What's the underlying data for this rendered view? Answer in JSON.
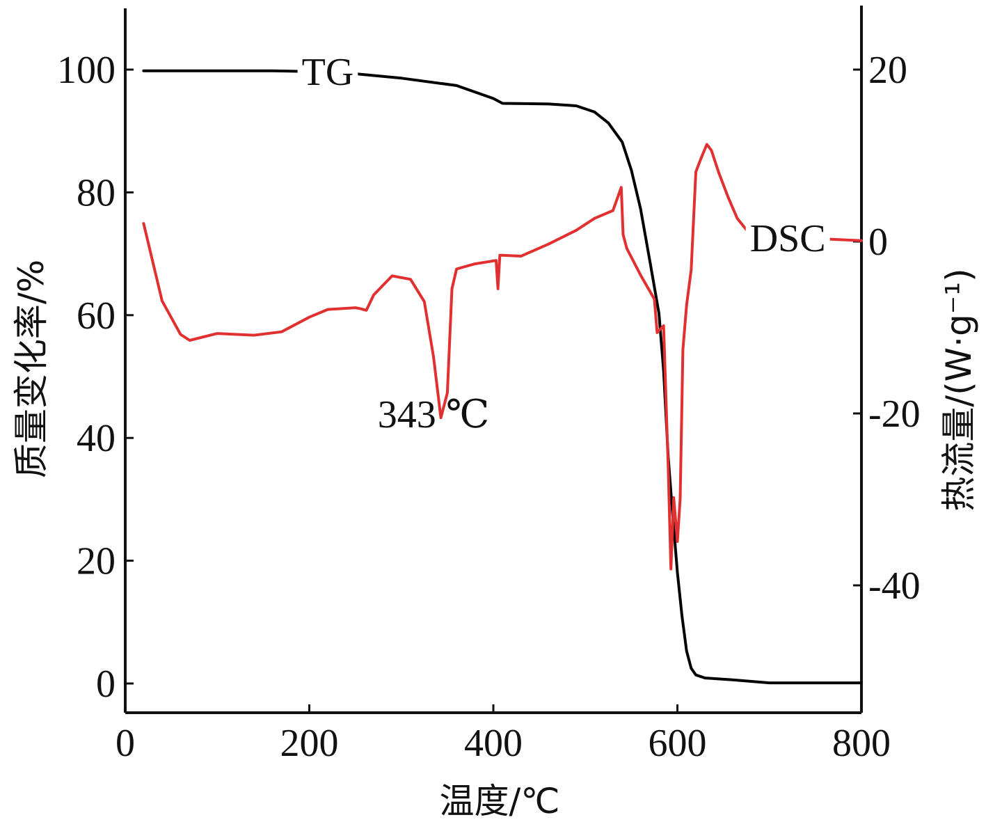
{
  "chart_data": {
    "type": "line",
    "xlabel": "温度/℃",
    "ylabel_left": "质量变化率/%",
    "ylabel_right": "热流量/(W·g⁻¹)",
    "xlim": [
      0,
      800
    ],
    "ylim_left": [
      -5,
      110
    ],
    "ylim_right": [
      -55,
      27
    ],
    "xticks": [
      0,
      200,
      400,
      600,
      800
    ],
    "yticks_left": [
      0,
      20,
      40,
      60,
      80,
      100
    ],
    "yticks_right": [
      20,
      0,
      -20,
      -40
    ],
    "colors": {
      "tg": "#000000",
      "dsc": "#e03030",
      "axis": "#111111"
    },
    "grid": false,
    "series": [
      {
        "name": "TG",
        "axis": "left",
        "color": "#000000",
        "x": [
          20,
          90,
          160,
          230,
          300,
          360,
          400,
          410,
          460,
          490,
          510,
          525,
          540,
          550,
          560,
          570,
          580,
          585,
          590,
          595,
          600,
          605,
          610,
          615,
          620,
          630,
          660,
          700,
          760,
          800
        ],
        "y": [
          99.8,
          99.8,
          99.8,
          99.6,
          98.6,
          97.4,
          95.3,
          94.5,
          94.4,
          94.1,
          93.1,
          91.3,
          88.2,
          83.6,
          77.3,
          68.9,
          60.3,
          50.9,
          36.9,
          27.2,
          18.1,
          11.0,
          5.3,
          2.5,
          1.4,
          0.9,
          0.6,
          0.1,
          0.1,
          0.1
        ]
      },
      {
        "name": "DSC",
        "axis": "right",
        "color": "#e03030",
        "x": [
          20,
          40,
          60,
          70,
          100,
          140,
          170,
          200,
          220,
          250,
          255,
          262,
          270,
          290,
          310,
          325,
          335,
          343,
          350,
          355,
          360,
          380,
          403,
          405,
          407,
          410,
          430,
          460,
          490,
          510,
          530,
          539,
          541,
          545,
          560,
          575,
          578,
          585,
          590,
          593,
          596,
          600,
          603,
          606,
          610,
          615,
          620,
          625,
          632,
          637,
          645,
          655,
          665,
          680,
          800
        ],
        "y": [
          2.1,
          -6.9,
          -10.8,
          -11.5,
          -10.7,
          -10.9,
          -10.5,
          -8.8,
          -7.9,
          -7.7,
          -7.8,
          -8.0,
          -6.2,
          -4.0,
          -4.4,
          -7.0,
          -13.4,
          -20.5,
          -17.6,
          -5.5,
          -3.2,
          -2.6,
          -2.2,
          -5.5,
          -1.6,
          -1.6,
          -1.7,
          -0.3,
          1.3,
          2.7,
          3.6,
          6.3,
          0.8,
          -0.8,
          -3.9,
          -6.7,
          -10.6,
          -9.8,
          -26.3,
          -38.1,
          -29.8,
          -34.9,
          -29.9,
          -12.6,
          -7.4,
          -3.3,
          8.1,
          9.5,
          11.3,
          10.6,
          8.0,
          5.2,
          2.7,
          0.7,
          0.1
        ]
      }
    ],
    "annotations": [
      {
        "text": "TG",
        "x": 220,
        "y_left": 99.8
      },
      {
        "text": "DSC",
        "x": 720,
        "y_right": 0.5
      },
      {
        "text": "343 ℃",
        "x": 335,
        "y_left": 44
      }
    ]
  }
}
